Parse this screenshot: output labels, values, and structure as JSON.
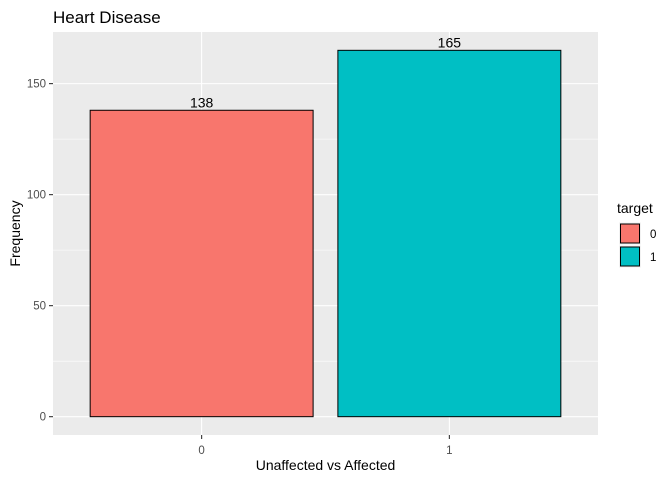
{
  "chart_data": {
    "type": "bar",
    "title": "Heart Disease",
    "xlabel": "Unaffected vs Affected",
    "ylabel": "Frequency",
    "categories": [
      "0",
      "1"
    ],
    "values": [
      138,
      165
    ],
    "data_labels": [
      "138",
      "165"
    ],
    "bar_colors": [
      "#F8766D",
      "#00BFC4"
    ],
    "bar_outline_color": "#000000",
    "panel_background": "#EBEBEB",
    "grid_color": "#FFFFFF",
    "grid": true,
    "ylim": [
      -8.25,
      173.25
    ],
    "yticks": [
      0,
      50,
      100,
      150
    ],
    "ytick_labels": [
      "0",
      "50",
      "100",
      "150"
    ],
    "legend": {
      "title": "target",
      "placement": "right",
      "entries": [
        {
          "label": "0",
          "color": "#F8766D"
        },
        {
          "label": "1",
          "color": "#00BFC4"
        }
      ]
    }
  }
}
